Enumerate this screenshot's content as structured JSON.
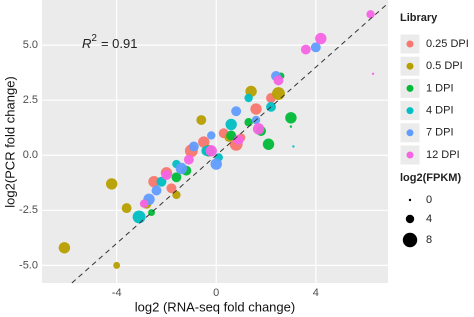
{
  "chart_data": {
    "type": "scatter",
    "x_label": "log2 (RNA-seq fold change)",
    "y_label": "log2(PCR fold change)",
    "annotation": {
      "base": "R",
      "superscript": "2",
      "text": "= 0.91"
    },
    "xlim": [
      -7,
      6.9
    ],
    "ylim": [
      -5.8,
      7.05
    ],
    "xticks": [
      -4,
      0,
      4
    ],
    "yticks": [
      {
        "value": 5,
        "label": "5.0"
      },
      {
        "value": 2.5,
        "label": "2.5"
      },
      {
        "value": 0,
        "label": "0.0"
      },
      {
        "value": -2.5,
        "label": "-2.5"
      },
      {
        "value": -5,
        "label": "-5.0"
      }
    ],
    "grid": true,
    "reference_line": {
      "slope": 1,
      "intercept": 0
    },
    "legend_title": "Library",
    "size_title": "log2(FPKM)",
    "size_ticks": [
      0,
      4,
      8
    ],
    "series": [
      {
        "name": "0.25 DPI",
        "color": "#F8766D",
        "x": [
          -2.5,
          -1.8,
          -1,
          -0.5,
          0.3,
          1,
          1.6,
          2.2,
          -2,
          0.8
        ],
        "y": [
          -1.2,
          -1.5,
          0.2,
          0.6,
          1.0,
          0.8,
          2.1,
          2.6,
          -0.8,
          0.5
        ],
        "size": [
          6,
          5,
          7,
          6,
          5,
          4,
          6,
          5,
          6,
          7
        ]
      },
      {
        "name": "0.5 DPI",
        "color": "#B79F00",
        "x": [
          -6.1,
          -4.0,
          -4.2,
          -3.6,
          -1.6,
          -0.6,
          1.4,
          2.5,
          -2.8,
          0.5
        ],
        "y": [
          -4.2,
          -5.0,
          -1.3,
          -2.4,
          -1.8,
          1.6,
          2.9,
          2.8,
          -2.2,
          0.8
        ],
        "size": [
          6,
          3,
          6,
          5,
          4,
          5,
          6,
          7,
          5,
          4
        ]
      },
      {
        "name": "1 DPI",
        "color": "#00BA38",
        "x": [
          -2.6,
          -1.2,
          -0.3,
          0.6,
          1.3,
          2.1,
          3.0,
          2.6,
          -1.6,
          1.8,
          3.0
        ],
        "y": [
          -2.6,
          -0.7,
          0.2,
          0.9,
          1.5,
          0.5,
          1.7,
          3.6,
          -1.0,
          1.1,
          1.3
        ],
        "size": [
          3,
          5,
          6,
          5,
          4,
          6,
          6,
          3,
          5,
          5,
          0
        ]
      },
      {
        "name": "4 DPI",
        "color": "#00BFC4",
        "x": [
          -3.1,
          -2.2,
          -1.6,
          -0.4,
          0.6,
          1.3,
          2.2,
          3.1,
          0.1
        ],
        "y": [
          -2.8,
          -1.2,
          -0.4,
          0.2,
          1.4,
          2.6,
          2.2,
          0.4,
          -0.1
        ],
        "size": [
          7,
          5,
          4,
          5,
          6,
          4,
          5,
          0,
          4
        ]
      },
      {
        "name": "7 DPI",
        "color": "#619CFF",
        "x": [
          -2.4,
          -1.4,
          -0.9,
          0,
          0.8,
          1.6,
          2.4,
          4.0,
          -2.7,
          -0.2
        ],
        "y": [
          -1.6,
          -0.6,
          0.4,
          -0.4,
          2.0,
          1.6,
          3.6,
          4.9,
          -2.0,
          0.9
        ],
        "size": [
          5,
          6,
          5,
          6,
          5,
          4,
          5,
          5,
          6,
          4
        ]
      },
      {
        "name": "12 DPI",
        "color": "#F564E3",
        "x": [
          -2.9,
          -2,
          -1.1,
          -0.2,
          0.9,
          1.7,
          2.5,
          4.2,
          6.2,
          6.3,
          3.6
        ],
        "y": [
          -2.2,
          -0.9,
          -0.2,
          0.2,
          0.7,
          1.2,
          3.4,
          5.3,
          6.4,
          3.7,
          4.8
        ],
        "size": [
          4,
          5,
          5,
          6,
          5,
          6,
          5,
          6,
          4,
          0,
          5
        ]
      }
    ]
  }
}
